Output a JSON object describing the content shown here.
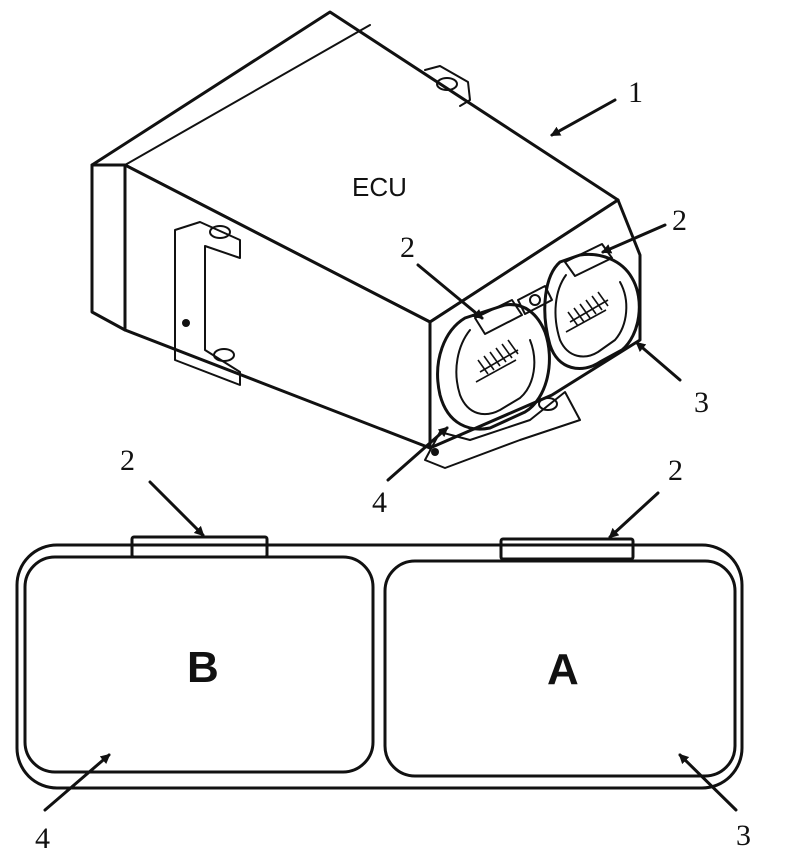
{
  "module_label": "ECU",
  "callouts": {
    "housing": "1",
    "lock_top_left": "2",
    "lock_top_right": "2",
    "connector_a_side": "3",
    "connector_b_side": "4",
    "lock_lower_left": "2",
    "lock_lower_right": "2",
    "connector_a_lower": "3",
    "connector_b_lower": "4"
  },
  "connectors": {
    "left_label": "B",
    "right_label": "A"
  }
}
